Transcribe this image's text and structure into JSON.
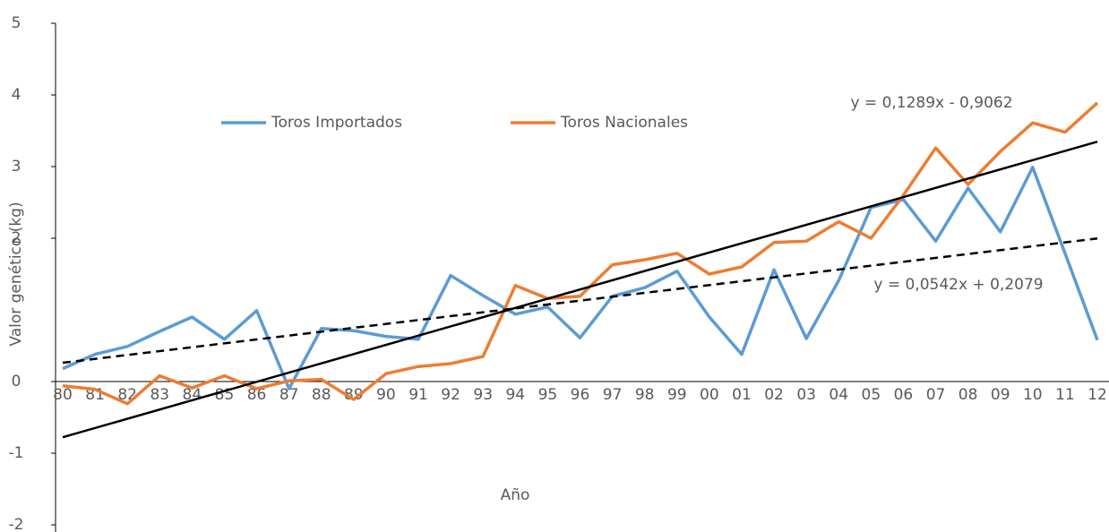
{
  "chart_data": {
    "type": "line",
    "x_label": "Año",
    "y_label": "Valor genético (kg)",
    "categories": [
      "80",
      "81",
      "82",
      "83",
      "84",
      "85",
      "86",
      "87",
      "88",
      "89",
      "90",
      "91",
      "92",
      "93",
      "94",
      "95",
      "96",
      "97",
      "98",
      "99",
      "00",
      "01",
      "02",
      "03",
      "04",
      "05",
      "06",
      "07",
      "08",
      "09",
      "10",
      "11",
      "12"
    ],
    "series": [
      {
        "name": "Toros Importados",
        "color": "#5b9bd5",
        "values": [
          0.18,
          0.38,
          0.49,
          0.7,
          0.9,
          0.59,
          0.99,
          -0.1,
          0.74,
          0.71,
          0.63,
          0.59,
          1.48,
          1.2,
          0.94,
          1.04,
          0.61,
          1.19,
          1.31,
          1.54,
          0.9,
          0.38,
          1.56,
          0.6,
          1.41,
          2.43,
          2.54,
          1.96,
          2.7,
          2.09,
          2.99,
          1.79,
          0.58
        ]
      },
      {
        "name": "Toros Nacionales",
        "color": "#ed7d31",
        "values": [
          -0.06,
          -0.11,
          -0.31,
          0.08,
          -0.09,
          0.08,
          -0.1,
          0.01,
          0.03,
          -0.25,
          0.11,
          0.21,
          0.25,
          0.35,
          1.34,
          1.16,
          1.19,
          1.63,
          1.7,
          1.79,
          1.5,
          1.6,
          1.94,
          1.96,
          2.23,
          2.0,
          2.6,
          3.26,
          2.75,
          3.21,
          3.61,
          3.48,
          3.89
        ]
      }
    ],
    "trendlines": [
      {
        "slope": 0.1289,
        "intercept": -0.9062,
        "label": "y = 0,1289x - 0,9062",
        "dashed": false,
        "color": "#000000"
      },
      {
        "slope": 0.0542,
        "intercept": 0.2079,
        "label": "y = 0,0542x + 0,2079",
        "dashed": true,
        "color": "#000000"
      }
    ],
    "ylim": [
      -2,
      5
    ],
    "yticks": [
      -2,
      -1,
      0,
      2,
      3,
      4,
      5
    ],
    "legend": "top"
  }
}
